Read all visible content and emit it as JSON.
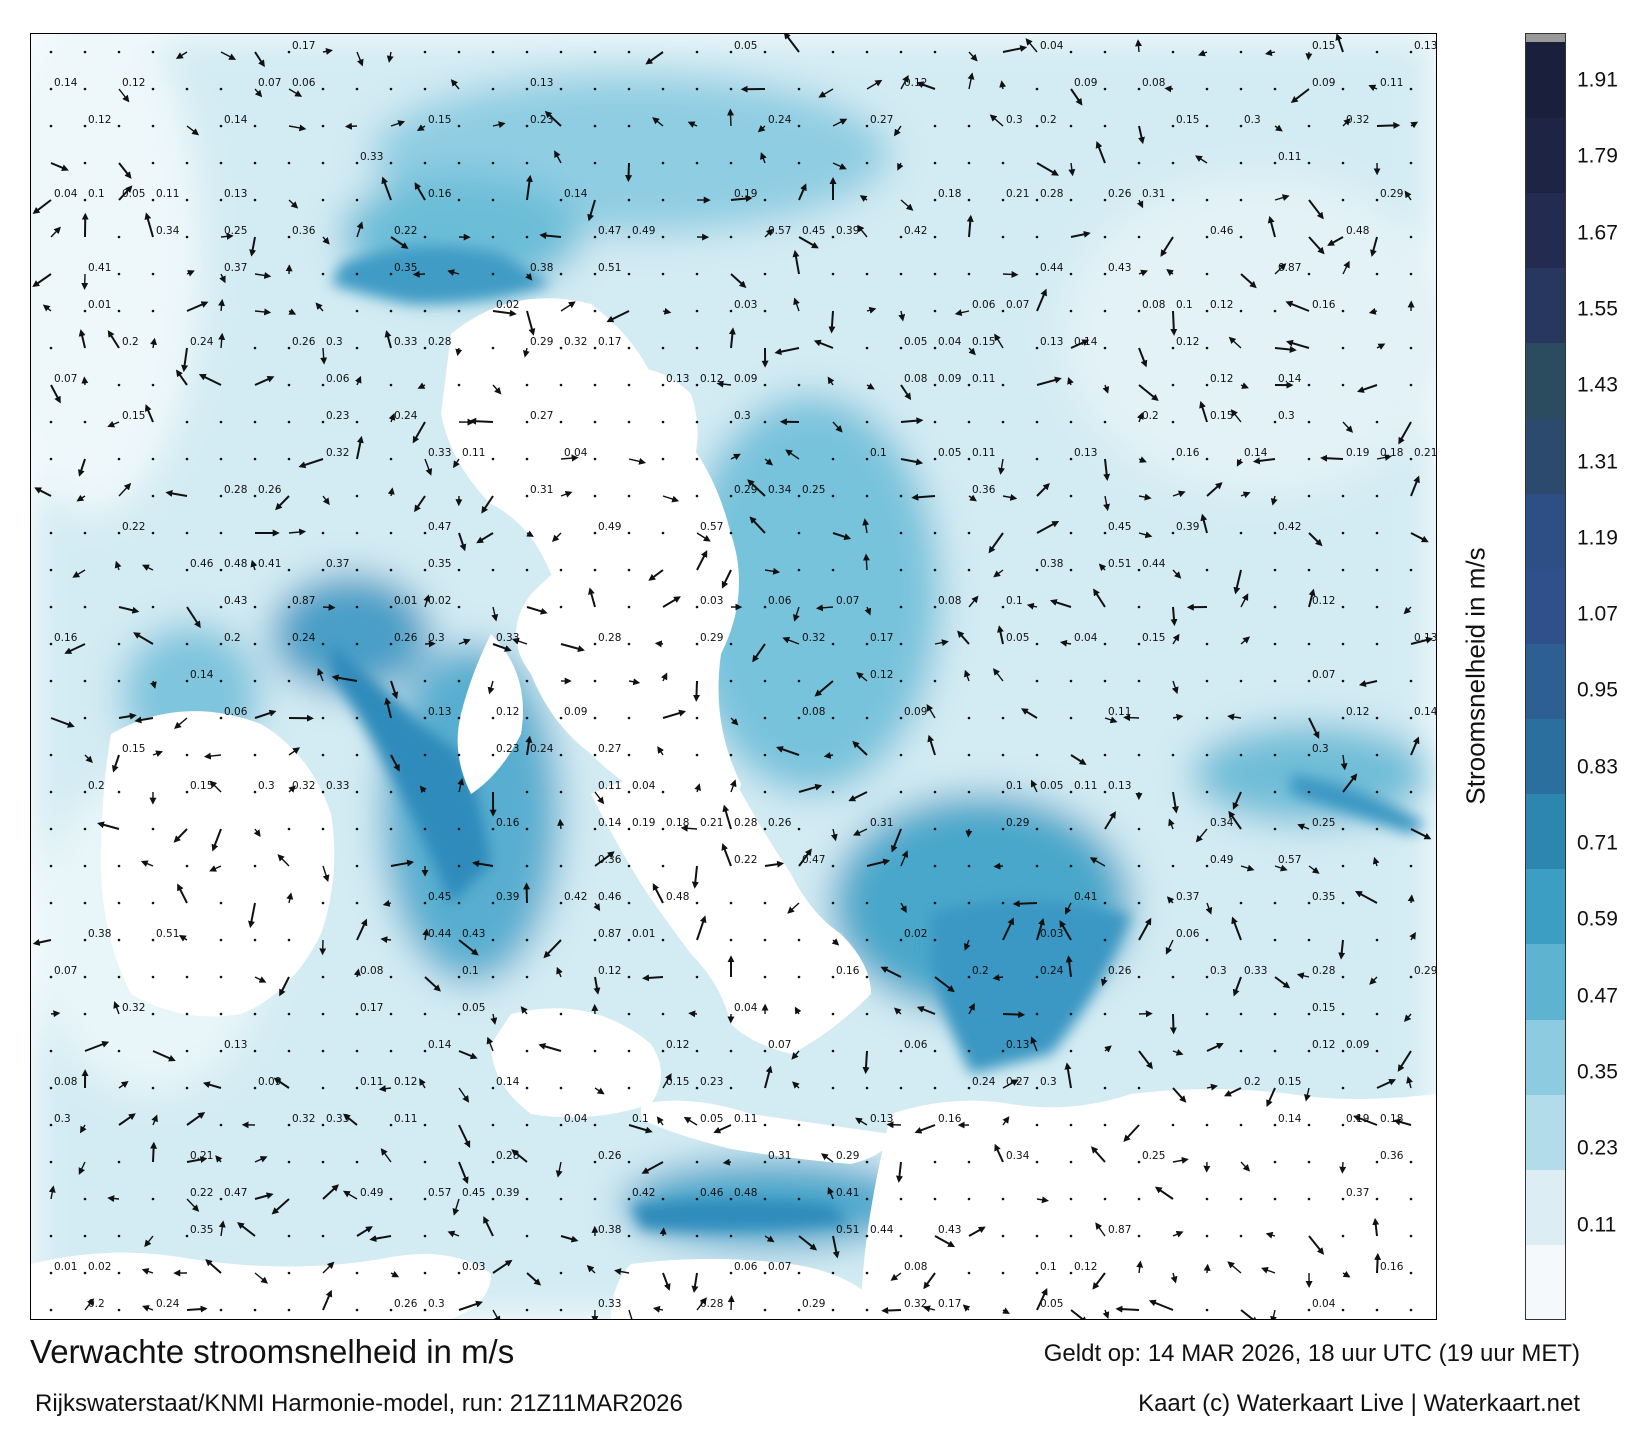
{
  "title": "Verwachte stroomsnelheid in m/s",
  "model_run": "Rijkswaterstaat/KNMI Harmonie-model, run: 21Z11MAR2026",
  "valid_time": "Geldt op: 14 MAR 2026, 18 uur UTC (19 uur MET)",
  "credit": "Kaart (c) Waterkaart Live | Waterkaart.net",
  "colorbar": {
    "label": "Stroomsnelheid in m/s",
    "ticks": [
      "1.91",
      "1.79",
      "1.67",
      "1.55",
      "1.43",
      "1.31",
      "1.19",
      "1.07",
      "0.95",
      "0.83",
      "0.71",
      "0.59",
      "0.47",
      "0.35",
      "0.23",
      "0.11"
    ],
    "colors": [
      "#f4fafc",
      "#dcedf4",
      "#b3dcea",
      "#8ccbe0",
      "#5db3d0",
      "#3b9ec2",
      "#2d86b0",
      "#2a6f9e",
      "#2e5f93",
      "#2f508a",
      "#2d4f86",
      "#2c4a6e",
      "#2b4b5f",
      "#27375e",
      "#232b50",
      "#1d2444",
      "#1a1f3b"
    ]
  },
  "speed_labels": [
    "0.17",
    "0.05",
    "0.04",
    "0.15",
    "0.13",
    "0.14",
    "0.12",
    "0.07",
    "0.06",
    "0.13",
    "0.12",
    "0.09",
    "0.08",
    "0.09",
    "0.11",
    "0.12",
    "0.14",
    "0.15",
    "0.23",
    "0.24",
    "0.27",
    "0.3",
    "0.2",
    "0.15",
    "0.3",
    "0.32",
    "0.33",
    "0.11",
    "0.04",
    "0.1",
    "0.05",
    "0.11",
    "0.13",
    "0.16",
    "0.14",
    "0.19",
    "0.18",
    "0.21",
    "0.28",
    "0.26",
    "0.31",
    "0.29",
    "0.34",
    "0.25",
    "0.36",
    "0.22",
    "0.47",
    "0.49",
    "0.57",
    "0.45",
    "0.39",
    "0.42",
    "0.46",
    "0.48",
    "0.41",
    "0.37",
    "0.35",
    "0.38",
    "0.51",
    "0.44",
    "0.43",
    "0.87",
    "0.01",
    "0.02",
    "0.03",
    "0.06",
    "0.07",
    "0.08",
    "0.1",
    "0.12",
    "0.16",
    "0.2",
    "0.24",
    "0.26",
    "0.3",
    "0.33",
    "0.28",
    "0.29",
    "0.32"
  ]
}
